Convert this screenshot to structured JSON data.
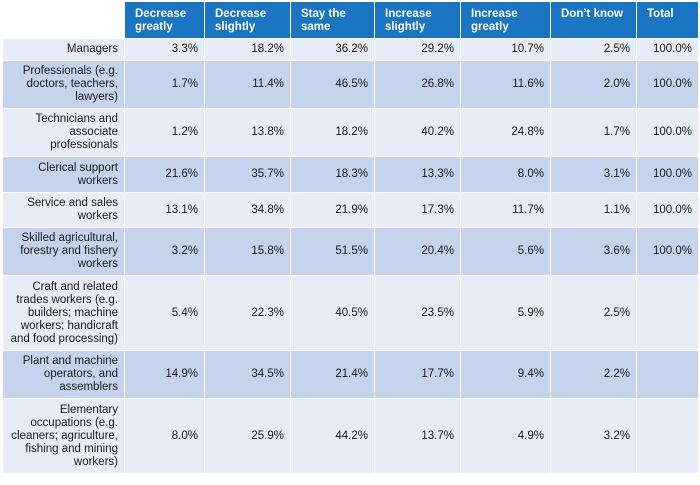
{
  "chart_data": {
    "type": "table",
    "columns": [
      "",
      "Decrease greatly",
      "Decrease slightly",
      "Stay the same",
      "Increase slightly",
      "Increase greatly",
      "Don’t know",
      "Total"
    ],
    "rows": [
      {
        "label": "Managers",
        "values": [
          "3.3%",
          "18.2%",
          "36.2%",
          "29.2%",
          "10.7%",
          "2.5%",
          "100.0%"
        ]
      },
      {
        "label": "Professionals (e.g. doctors, teachers, lawyers)",
        "values": [
          "1.7%",
          "11.4%",
          "46.5%",
          "26.8%",
          "11.6%",
          "2.0%",
          "100.0%"
        ]
      },
      {
        "label": "Technicians and associate professionals",
        "values": [
          "1.2%",
          "13.8%",
          "18.2%",
          "40.2%",
          "24.8%",
          "1.7%",
          "100.0%"
        ]
      },
      {
        "label": "Clerical support workers",
        "values": [
          "21.6%",
          "35.7%",
          "18.3%",
          "13.3%",
          "8.0%",
          "3.1%",
          "100.0%"
        ]
      },
      {
        "label": "Service and sales workers",
        "values": [
          "13.1%",
          "34.8%",
          "21.9%",
          "17.3%",
          "11.7%",
          "1.1%",
          "100.0%"
        ]
      },
      {
        "label": "Skilled agricultural, forestry and fishery workers",
        "values": [
          "3.2%",
          "15.8%",
          "51.5%",
          "20.4%",
          "5.6%",
          "3.6%",
          "100.0%"
        ]
      },
      {
        "label": "Craft and related trades workers (e.g. builders; machine workers; handicraft and food processing)",
        "values": [
          "5.4%",
          "22.3%",
          "40.5%",
          "23.5%",
          "5.9%",
          "2.5%",
          ""
        ]
      },
      {
        "label": "Plant and machine operators, and assemblers",
        "values": [
          "14.9%",
          "34.5%",
          "21.4%",
          "17.7%",
          "9.4%",
          "2.2%",
          ""
        ]
      },
      {
        "label": "Elementary occupations (e.g. cleaners; agriculture, fishing and mining workers)",
        "values": [
          "8.0%",
          "25.9%",
          "44.2%",
          "13.7%",
          "4.9%",
          "3.2%",
          ""
        ]
      }
    ]
  },
  "colors": {
    "header": "#1a75c2",
    "row_light": "#e7ecf6",
    "row_dark": "#c5d3ec"
  }
}
